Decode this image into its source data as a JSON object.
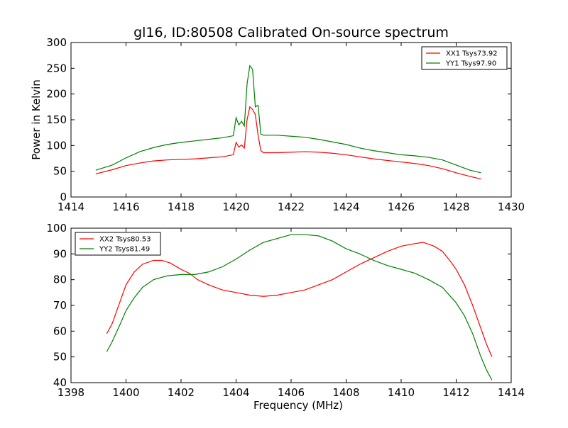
{
  "title": "gl16, ID:80508 Calibrated On-source spectrum",
  "colors": {
    "xx": "#ff0000",
    "yy": "#008000"
  },
  "chart_data": [
    {
      "type": "line",
      "ylabel": "Power in Kelvin",
      "xlabel": "",
      "xlim": [
        1414,
        1430
      ],
      "ylim": [
        0,
        300
      ],
      "xticks": [
        "1414",
        "1416",
        "1418",
        "1420",
        "1422",
        "1424",
        "1426",
        "1428",
        "1430"
      ],
      "yticks": [
        "0",
        "50",
        "100",
        "150",
        "200",
        "250",
        "300"
      ],
      "legend_position": "top-right",
      "series": [
        {
          "name": "XX1 Tsys73.92",
          "color": "#ff0000",
          "points": [
            [
              1414.9,
              45
            ],
            [
              1415.5,
              53
            ],
            [
              1416,
              61
            ],
            [
              1416.5,
              66
            ],
            [
              1417,
              70
            ],
            [
              1417.5,
              72
            ],
            [
              1418,
              73
            ],
            [
              1418.5,
              74
            ],
            [
              1419,
              76
            ],
            [
              1419.5,
              78
            ],
            [
              1419.9,
              82
            ],
            [
              1420.0,
              106
            ],
            [
              1420.1,
              97
            ],
            [
              1420.2,
              101
            ],
            [
              1420.3,
              95
            ],
            [
              1420.4,
              150
            ],
            [
              1420.5,
              175
            ],
            [
              1420.6,
              170
            ],
            [
              1420.7,
              160
            ],
            [
              1420.8,
              120
            ],
            [
              1420.9,
              90
            ],
            [
              1421.0,
              86
            ],
            [
              1421.5,
              86
            ],
            [
              1422,
              87
            ],
            [
              1422.5,
              88
            ],
            [
              1423,
              87
            ],
            [
              1423.5,
              85
            ],
            [
              1424,
              82
            ],
            [
              1424.5,
              78
            ],
            [
              1425,
              74
            ],
            [
              1425.5,
              71
            ],
            [
              1426,
              68
            ],
            [
              1426.5,
              65
            ],
            [
              1427,
              61
            ],
            [
              1427.5,
              55
            ],
            [
              1428,
              47
            ],
            [
              1428.5,
              40
            ],
            [
              1428.9,
              35
            ]
          ]
        },
        {
          "name": "YY1 Tsys97.90",
          "color": "#008000",
          "points": [
            [
              1414.9,
              52
            ],
            [
              1415.5,
              62
            ],
            [
              1416,
              76
            ],
            [
              1416.5,
              88
            ],
            [
              1417,
              96
            ],
            [
              1417.5,
              102
            ],
            [
              1418,
              106
            ],
            [
              1418.5,
              109
            ],
            [
              1419,
              112
            ],
            [
              1419.5,
              115
            ],
            [
              1419.9,
              119
            ],
            [
              1420.0,
              154
            ],
            [
              1420.1,
              140
            ],
            [
              1420.2,
              147
            ],
            [
              1420.3,
              138
            ],
            [
              1420.4,
              220
            ],
            [
              1420.5,
              255
            ],
            [
              1420.6,
              248
            ],
            [
              1420.7,
              175
            ],
            [
              1420.8,
              178
            ],
            [
              1420.9,
              122
            ],
            [
              1421.0,
              120
            ],
            [
              1421.5,
              120
            ],
            [
              1422,
              118
            ],
            [
              1422.5,
              116
            ],
            [
              1423,
              112
            ],
            [
              1423.5,
              107
            ],
            [
              1424,
              102
            ],
            [
              1424.5,
              95
            ],
            [
              1425,
              90
            ],
            [
              1425.5,
              86
            ],
            [
              1426,
              82
            ],
            [
              1426.5,
              80
            ],
            [
              1427,
              77
            ],
            [
              1427.5,
              72
            ],
            [
              1428,
              62
            ],
            [
              1428.5,
              52
            ],
            [
              1428.9,
              47
            ]
          ]
        }
      ]
    },
    {
      "type": "line",
      "ylabel": "",
      "xlabel": "Frequency (MHz)",
      "xlim": [
        1398,
        1414
      ],
      "ylim": [
        40,
        100
      ],
      "xticks": [
        "1398",
        "1400",
        "1402",
        "1404",
        "1406",
        "1408",
        "1410",
        "1412",
        "1414"
      ],
      "yticks": [
        "40",
        "50",
        "60",
        "70",
        "80",
        "90",
        "100"
      ],
      "legend_position": "top-left",
      "series": [
        {
          "name": "XX2 Tsys80.53",
          "color": "#ff0000",
          "points": [
            [
              1399.3,
              59
            ],
            [
              1399.5,
              63
            ],
            [
              1399.8,
              72
            ],
            [
              1400,
              78
            ],
            [
              1400.3,
              83
            ],
            [
              1400.6,
              86
            ],
            [
              1401,
              87.5
            ],
            [
              1401.3,
              87.5
            ],
            [
              1401.6,
              86.5
            ],
            [
              1402,
              84
            ],
            [
              1402.3,
              82.5
            ],
            [
              1402.6,
              80
            ],
            [
              1403,
              78
            ],
            [
              1403.5,
              76
            ],
            [
              1404,
              75
            ],
            [
              1404.5,
              74
            ],
            [
              1405,
              73.5
            ],
            [
              1405.5,
              74
            ],
            [
              1406,
              75
            ],
            [
              1406.5,
              76
            ],
            [
              1407,
              78
            ],
            [
              1407.5,
              80
            ],
            [
              1408,
              83
            ],
            [
              1408.5,
              86
            ],
            [
              1409,
              88.5
            ],
            [
              1409.5,
              91
            ],
            [
              1410,
              93
            ],
            [
              1410.5,
              94
            ],
            [
              1410.8,
              94.5
            ],
            [
              1411.2,
              93
            ],
            [
              1411.5,
              91
            ],
            [
              1411.8,
              87
            ],
            [
              1412,
              84
            ],
            [
              1412.3,
              78
            ],
            [
              1412.6,
              70
            ],
            [
              1412.9,
              61
            ],
            [
              1413.1,
              55
            ],
            [
              1413.3,
              50
            ]
          ]
        },
        {
          "name": "YY2 Tsys81.49",
          "color": "#008000",
          "points": [
            [
              1399.3,
              52
            ],
            [
              1399.5,
              56
            ],
            [
              1399.8,
              63
            ],
            [
              1400,
              68
            ],
            [
              1400.3,
              73
            ],
            [
              1400.6,
              77
            ],
            [
              1401,
              80
            ],
            [
              1401.5,
              81.5
            ],
            [
              1402,
              82
            ],
            [
              1402.5,
              82
            ],
            [
              1403,
              83
            ],
            [
              1403.5,
              85
            ],
            [
              1404,
              88
            ],
            [
              1404.5,
              91.5
            ],
            [
              1405,
              94.5
            ],
            [
              1405.5,
              96
            ],
            [
              1406,
              97.5
            ],
            [
              1406.5,
              97.5
            ],
            [
              1407,
              97
            ],
            [
              1407.5,
              95
            ],
            [
              1408,
              92
            ],
            [
              1408.5,
              90
            ],
            [
              1409,
              87.5
            ],
            [
              1409.5,
              85.5
            ],
            [
              1410,
              84
            ],
            [
              1410.5,
              82.5
            ],
            [
              1411,
              80
            ],
            [
              1411.5,
              77
            ],
            [
              1412,
              71
            ],
            [
              1412.3,
              66
            ],
            [
              1412.6,
              59
            ],
            [
              1412.9,
              50
            ],
            [
              1413.1,
              45
            ],
            [
              1413.3,
              41
            ]
          ]
        }
      ]
    }
  ]
}
